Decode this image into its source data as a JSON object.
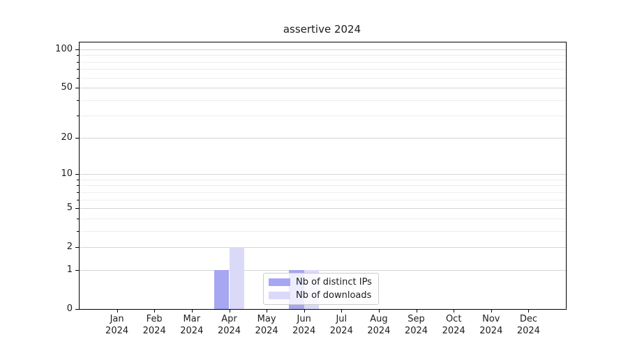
{
  "chart_data": {
    "type": "bar",
    "title": "assertive 2024",
    "categories": [
      "Jan",
      "Feb",
      "Mar",
      "Apr",
      "May",
      "Jun",
      "Jul",
      "Aug",
      "Sep",
      "Oct",
      "Nov",
      "Dec"
    ],
    "category_year": "2024",
    "series": [
      {
        "name": "Nb of distinct IPs",
        "color": "#a6a6f2",
        "values": [
          0,
          0,
          0,
          1,
          0,
          1,
          0,
          0,
          0,
          0,
          0,
          0
        ]
      },
      {
        "name": "Nb of downloads",
        "color": "#dadaf8",
        "values": [
          0,
          0,
          0,
          2,
          0,
          1,
          0,
          0,
          0,
          0,
          0,
          0
        ]
      }
    ],
    "xlabel": "",
    "ylabel": "",
    "yscale": "log10(1+y)",
    "ylim": [
      0,
      113
    ],
    "yticks": [
      0,
      1,
      2,
      5,
      10,
      20,
      50,
      100
    ],
    "minor_gridline_values": [
      3,
      4,
      6,
      7,
      8,
      9,
      30,
      40,
      60,
      70,
      80,
      90
    ],
    "grid": "on",
    "legend_position": "lower center",
    "colors": {
      "major_grid": "#d4d4d4",
      "minor_grid": "#ededed",
      "spine": "#000000",
      "text": "#1c1c1c",
      "legend_border": "#cccccc",
      "legend_bg": "rgba(255,255,255,0.8)"
    }
  }
}
